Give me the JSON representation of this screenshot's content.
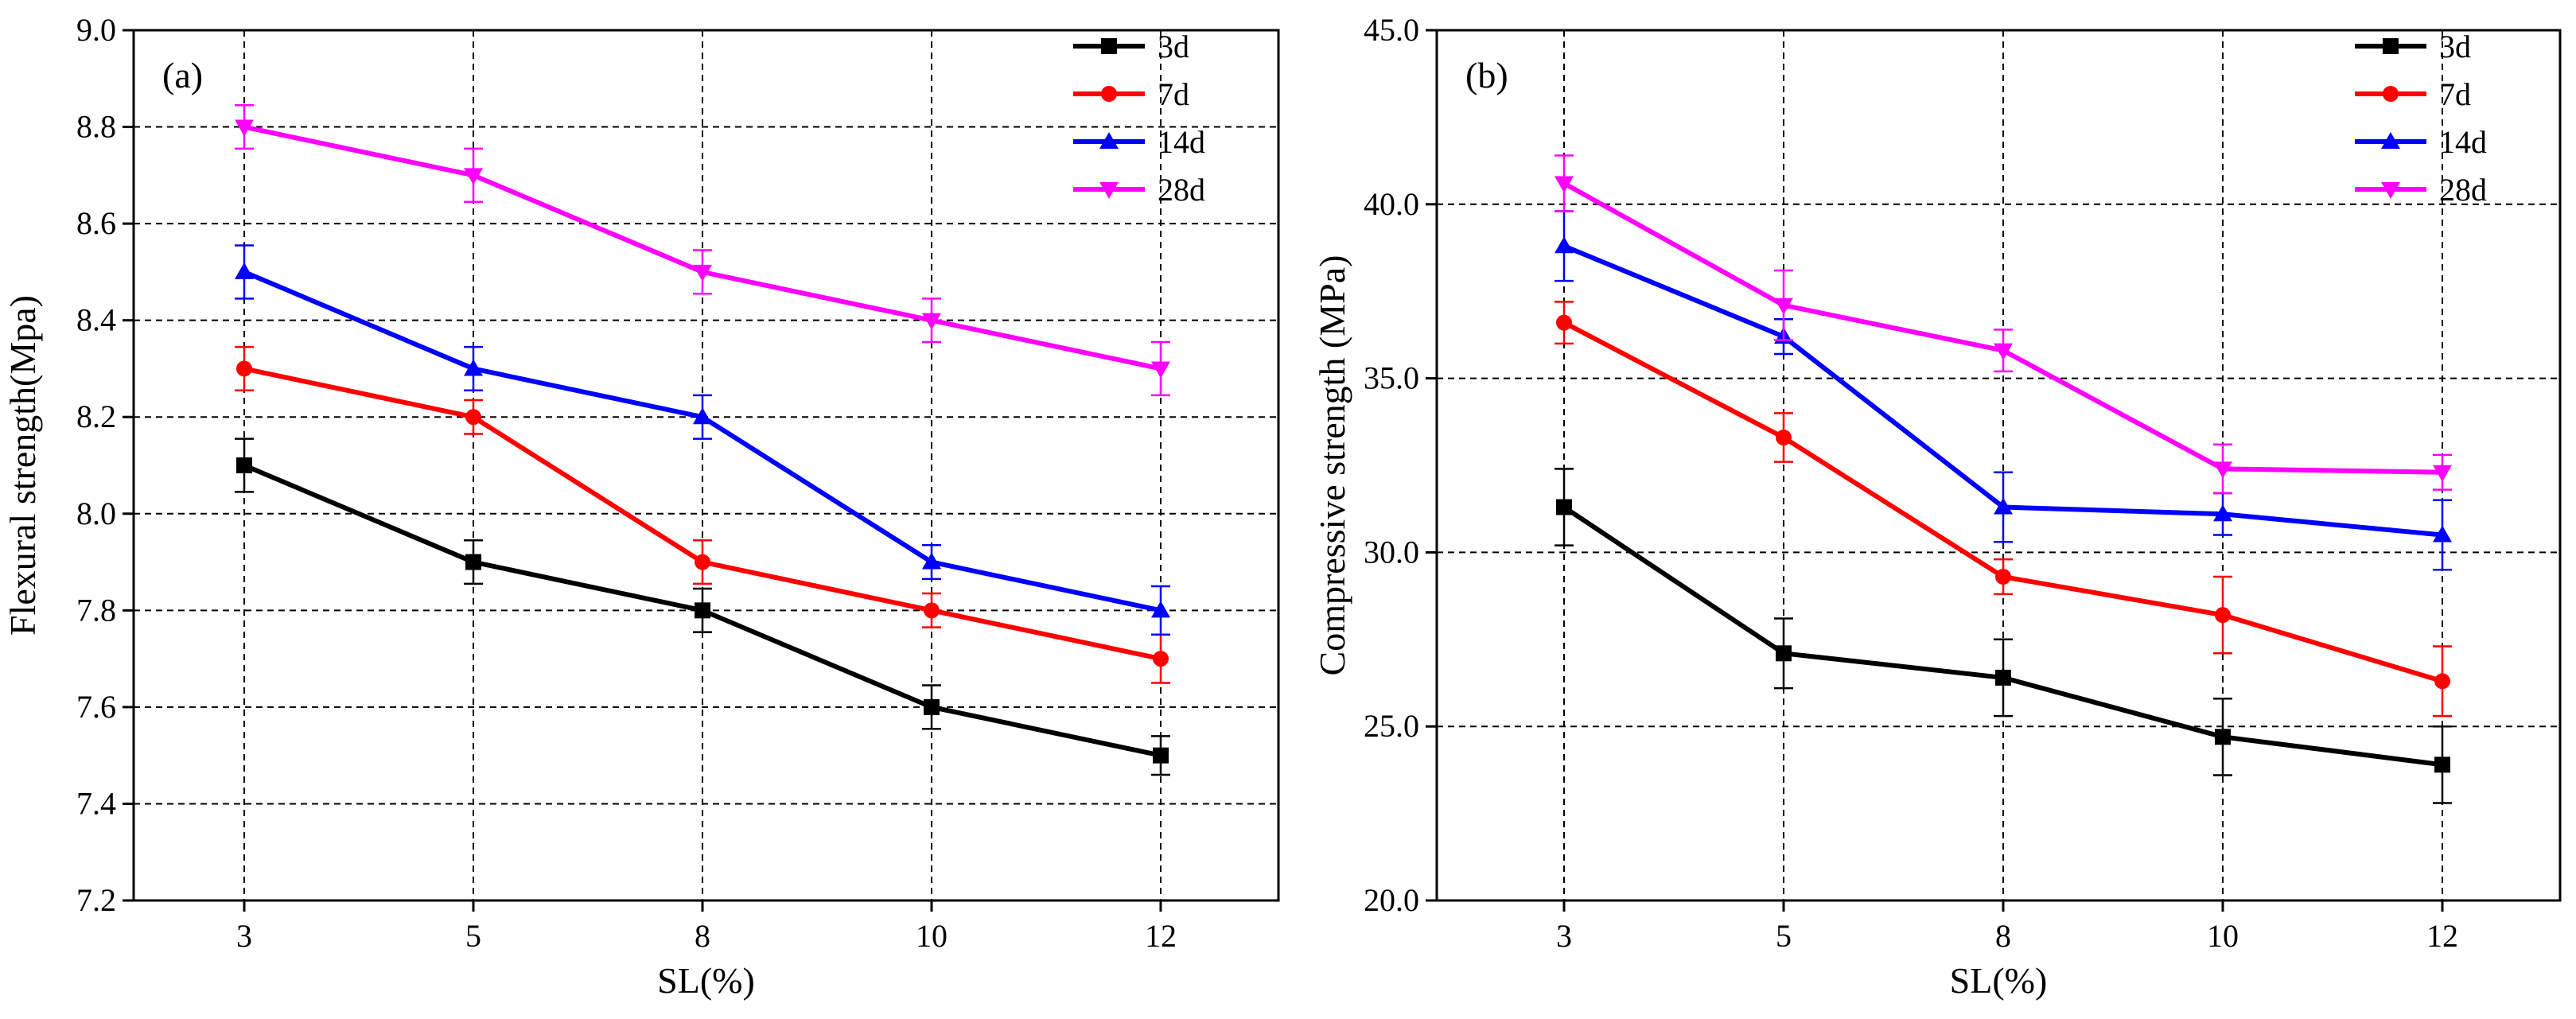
{
  "chart_data": [
    {
      "type": "line",
      "panel_label": "(a)",
      "title": "",
      "xlabel": "SL(%)",
      "ylabel": "Flexural strength(Mpa)",
      "categories": [
        "3",
        "5",
        "8",
        "10",
        "12"
      ],
      "ylim": [
        7.2,
        9.0
      ],
      "yticks": [
        "7.2",
        "7.4",
        "7.6",
        "7.8",
        "8.0",
        "8.2",
        "8.4",
        "8.6",
        "8.8",
        "9.0"
      ],
      "grid": true,
      "legend_position": "top-right",
      "series": [
        {
          "name": "3d",
          "color": "#000000",
          "marker": "square",
          "values": [
            8.1,
            7.9,
            7.8,
            7.6,
            7.5
          ],
          "errors": [
            0.055,
            0.045,
            0.045,
            0.045,
            0.04
          ]
        },
        {
          "name": "7d",
          "color": "#ff0000",
          "marker": "circle",
          "values": [
            8.3,
            8.2,
            7.9,
            7.8,
            7.7
          ],
          "errors": [
            0.045,
            0.035,
            0.045,
            0.035,
            0.05
          ]
        },
        {
          "name": "14d",
          "color": "#0000ff",
          "marker": "triangle-up",
          "values": [
            8.5,
            8.3,
            8.2,
            7.9,
            7.8
          ],
          "errors": [
            0.055,
            0.045,
            0.045,
            0.035,
            0.05
          ]
        },
        {
          "name": "28d",
          "color": "#ff00ff",
          "marker": "triangle-down",
          "values": [
            8.8,
            8.7,
            8.5,
            8.4,
            8.3
          ],
          "errors": [
            0.045,
            0.055,
            0.045,
            0.045,
            0.055
          ]
        }
      ]
    },
    {
      "type": "line",
      "panel_label": "(b)",
      "title": "",
      "xlabel": "SL(%)",
      "ylabel": "Compressive strength (MPa)",
      "categories": [
        "3",
        "5",
        "8",
        "10",
        "12"
      ],
      "ylim": [
        20.0,
        45.0
      ],
      "yticks": [
        "20.0",
        "25.0",
        "30.0",
        "35.0",
        "40.0",
        "45.0"
      ],
      "grid": true,
      "legend_position": "top-right",
      "series": [
        {
          "name": "3d",
          "color": "#000000",
          "marker": "square",
          "values": [
            31.3,
            27.1,
            26.4,
            24.7,
            23.9
          ],
          "errors": [
            1.1,
            1.0,
            1.1,
            1.1,
            1.1
          ]
        },
        {
          "name": "7d",
          "color": "#ff0000",
          "marker": "circle",
          "values": [
            36.6,
            33.3,
            29.3,
            28.2,
            26.3
          ],
          "errors": [
            0.6,
            0.7,
            0.5,
            1.1,
            1.0
          ]
        },
        {
          "name": "14d",
          "color": "#0000ff",
          "marker": "triangle-up",
          "values": [
            38.8,
            36.2,
            31.3,
            31.1,
            30.5
          ],
          "errors": [
            1.0,
            0.5,
            1.0,
            0.6,
            1.0
          ]
        },
        {
          "name": "28d",
          "color": "#ff00ff",
          "marker": "triangle-down",
          "values": [
            40.6,
            37.1,
            35.8,
            32.4,
            32.3
          ],
          "errors": [
            0.8,
            1.0,
            0.6,
            0.7,
            0.5
          ]
        }
      ]
    }
  ]
}
